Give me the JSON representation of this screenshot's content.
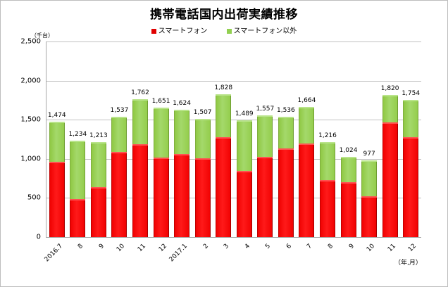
{
  "chart_data": {
    "type": "bar",
    "stacked": true,
    "title": "携帯電話国内出荷実績推移",
    "xlabel": "（年,月）",
    "ylabel": "（千台）",
    "ylim": [
      0,
      2500
    ],
    "yticks": [
      "0",
      "500",
      "1,000",
      "1,500",
      "2,000",
      "2,500"
    ],
    "ytick_values": [
      0,
      500,
      1000,
      1500,
      2000,
      2500
    ],
    "grid": true,
    "legend_position": "top",
    "categories": [
      "2016.7",
      "8",
      "9",
      "10",
      "11",
      "12",
      "2017.1",
      "2",
      "3",
      "4",
      "5",
      "6",
      "7",
      "8",
      "9",
      "10",
      "11",
      "12"
    ],
    "series": [
      {
        "name": "スマートフォン",
        "color": "#ff0000",
        "values": [
          962,
          486,
          639,
          1088,
          1187,
          1016,
          1061,
          1007,
          1277,
          845,
          1025,
          1133,
          1196,
          728,
          701,
          522,
          1466,
          1277
        ]
      },
      {
        "name": "スマートフォン以外",
        "color": "#92d050",
        "values": [
          512,
          748,
          574,
          449,
          575,
          635,
          563,
          500,
          551,
          644,
          532,
          403,
          468,
          488,
          323,
          455,
          354,
          477
        ]
      }
    ],
    "totals": [
      1474,
      1234,
      1213,
      1537,
      1762,
      1651,
      1624,
      1507,
      1828,
      1489,
      1557,
      1536,
      1664,
      1216,
      1024,
      977,
      1820,
      1754
    ],
    "total_labels": [
      "1,474",
      "1,234",
      "1,213",
      "1,537",
      "1,762",
      "1,651",
      "1,624",
      "1,507",
      "1,828",
      "1,489",
      "1,557",
      "1,536",
      "1,664",
      "1,216",
      "1,024",
      "977",
      "1,820",
      "1,754"
    ]
  },
  "labels": {
    "title": "携帯電話国内出荷実績推移",
    "legend_smart": "スマートフォン",
    "legend_other": "スマートフォン以外",
    "unit_y": "（千台）",
    "unit_x": "（年,月）"
  }
}
